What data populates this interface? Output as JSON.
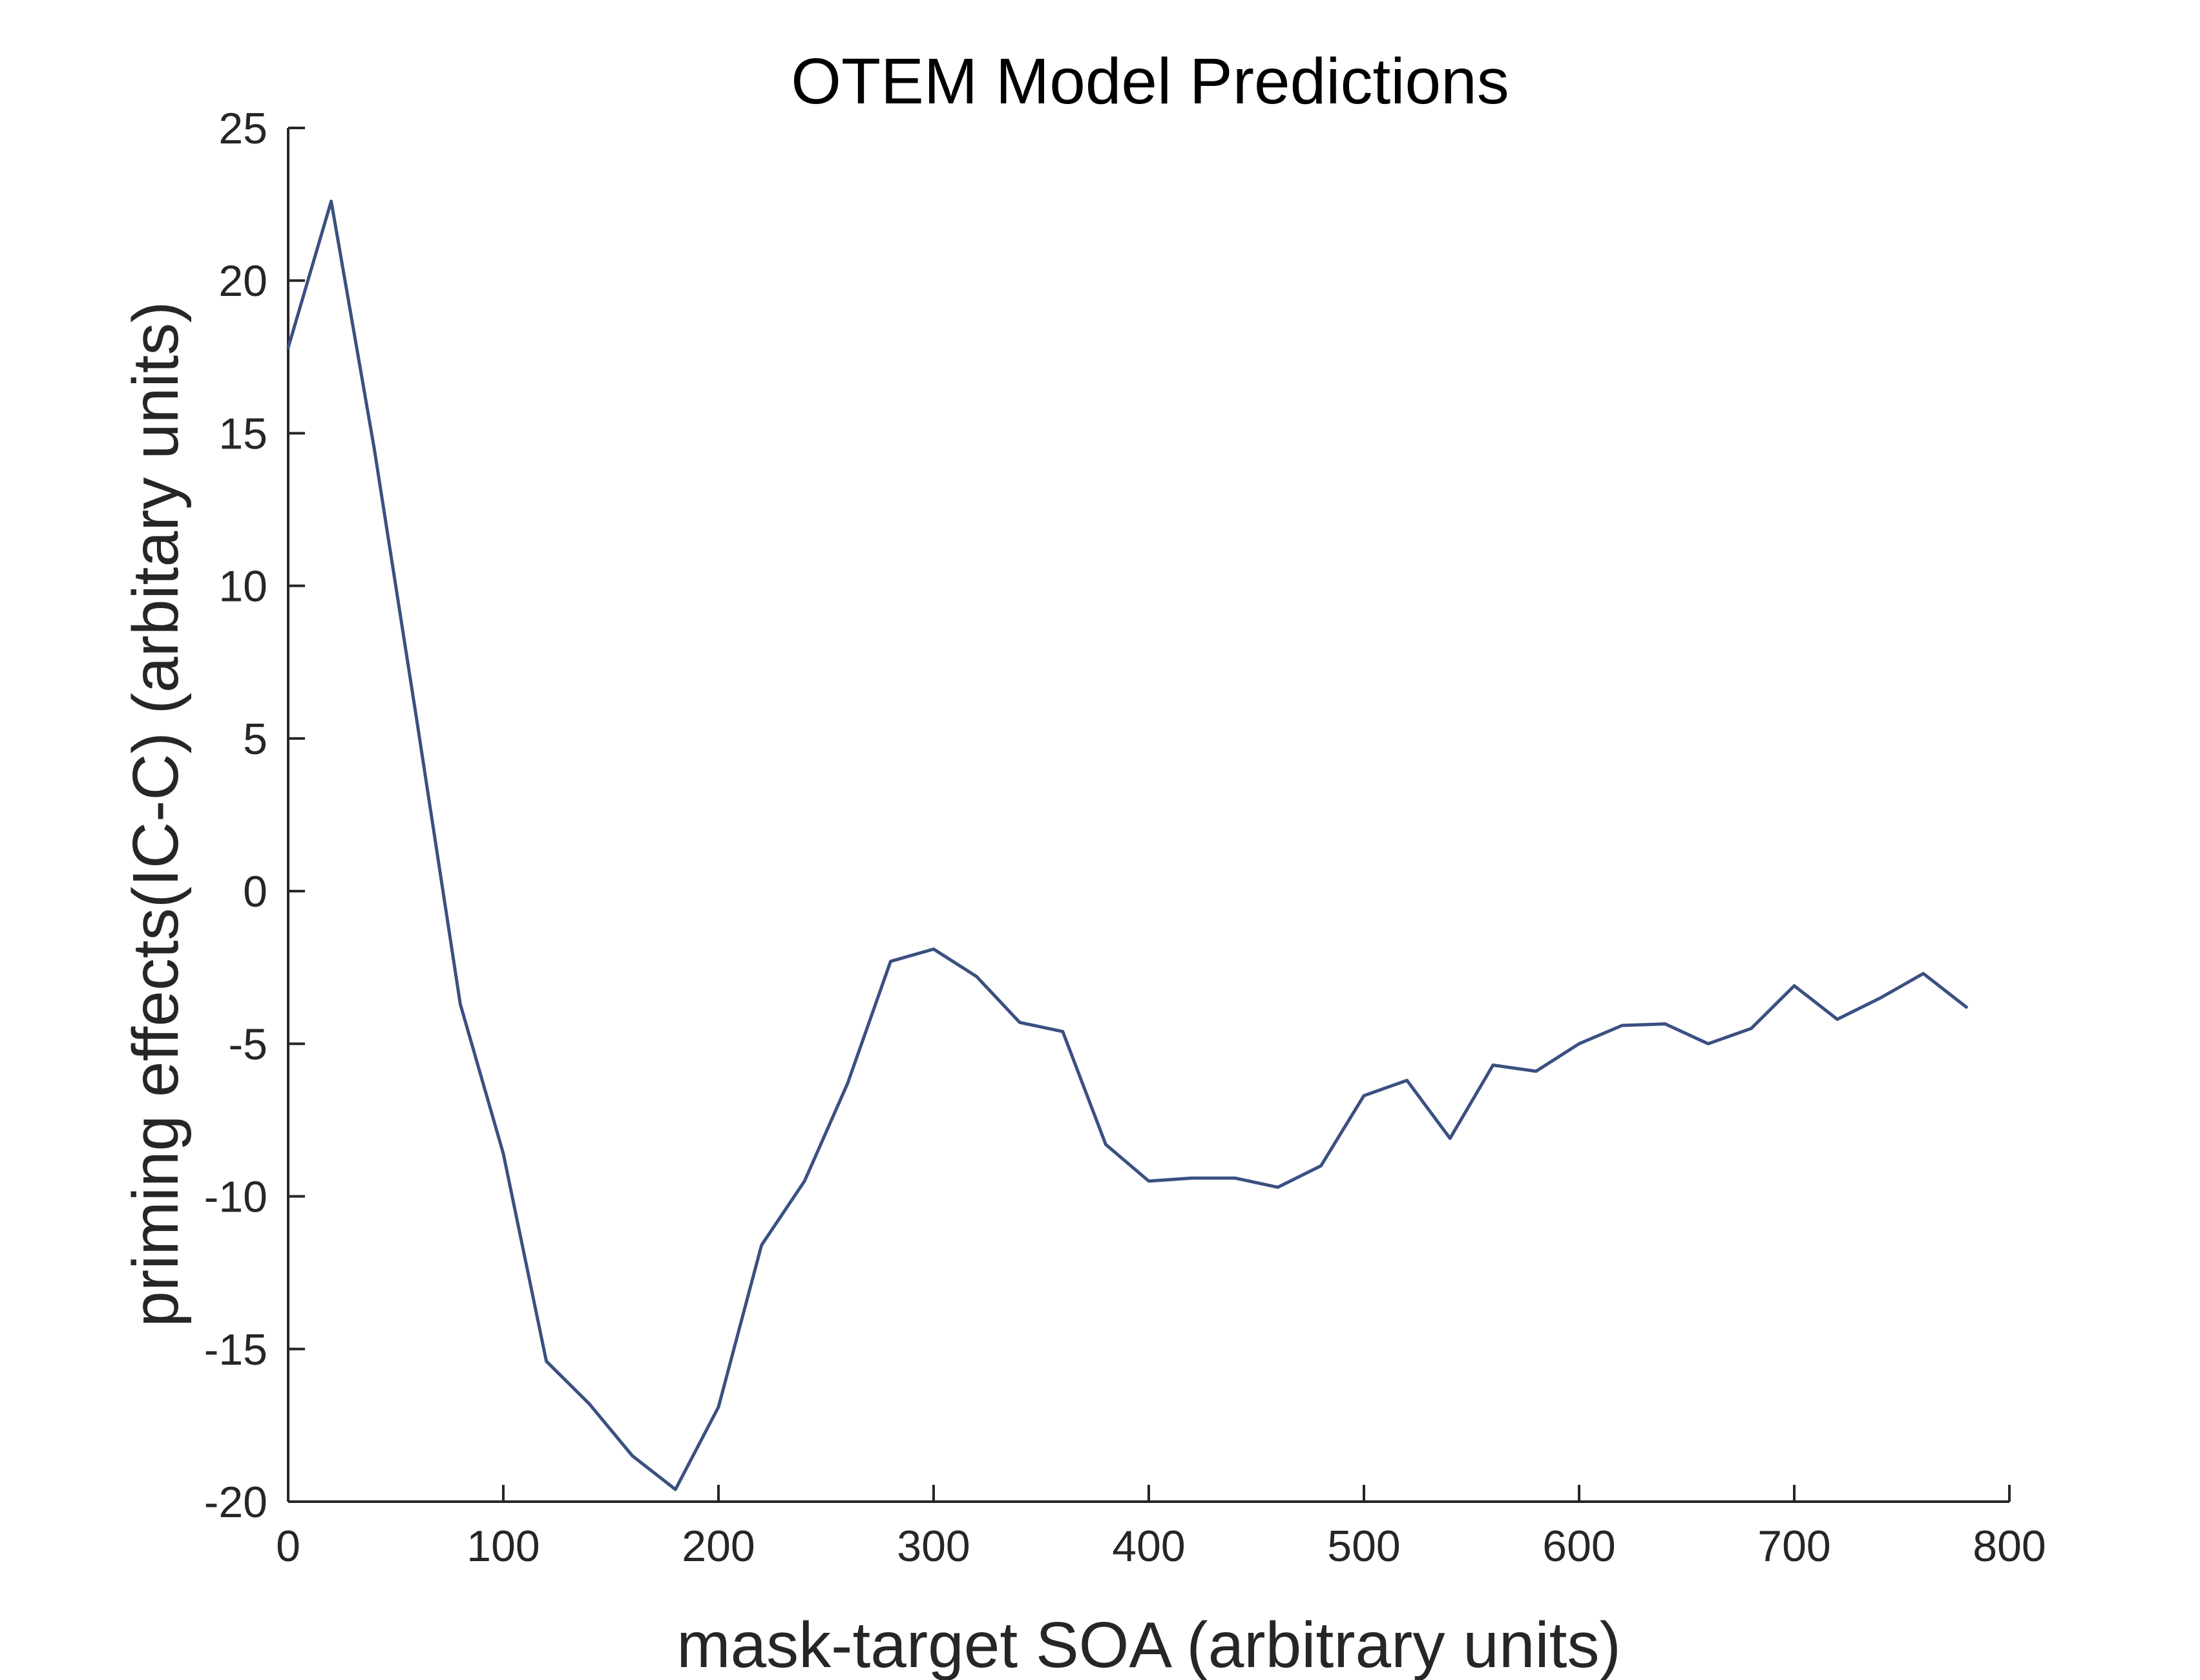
{
  "chart_data": {
    "type": "line",
    "title": "OTEM Model Predictions",
    "xlabel": "mask-target SOA (arbitrary units)",
    "ylabel": "priming effects(IC-C) (arbitary units)",
    "xlim": [
      0,
      800
    ],
    "ylim": [
      -20,
      25
    ],
    "xticks": [
      0,
      100,
      200,
      300,
      400,
      500,
      600,
      700,
      800
    ],
    "yticks": [
      -20,
      -15,
      -10,
      -5,
      0,
      5,
      10,
      15,
      20,
      25
    ],
    "grid": false,
    "legend": "none",
    "line_color": "#3a5080",
    "series": [
      {
        "x": [
          0,
          20,
          40,
          60,
          80,
          100,
          120,
          140,
          160,
          180,
          200,
          220,
          240,
          260,
          280,
          300,
          320,
          340,
          360,
          380,
          400,
          420,
          440,
          460,
          480,
          500,
          520,
          540,
          560,
          580,
          600,
          620,
          640,
          660,
          680,
          700,
          720,
          740,
          760,
          780
        ],
        "values": [
          17.8,
          22.6,
          14.5,
          5.5,
          -3.7,
          -8.6,
          -15.4,
          -16.8,
          -18.5,
          -19.6,
          -16.9,
          -11.6,
          -9.5,
          -6.3,
          -2.3,
          -1.9,
          -2.8,
          -4.3,
          -4.6,
          -8.3,
          -9.5,
          -9.4,
          -9.4,
          -9.7,
          -9.0,
          -6.7,
          -6.2,
          -8.1,
          -5.7,
          -5.9,
          -5.0,
          -4.4,
          -4.35,
          -5.0,
          -4.5,
          -3.1,
          -4.2,
          -3.5,
          -2.7,
          -3.8
        ]
      }
    ]
  }
}
